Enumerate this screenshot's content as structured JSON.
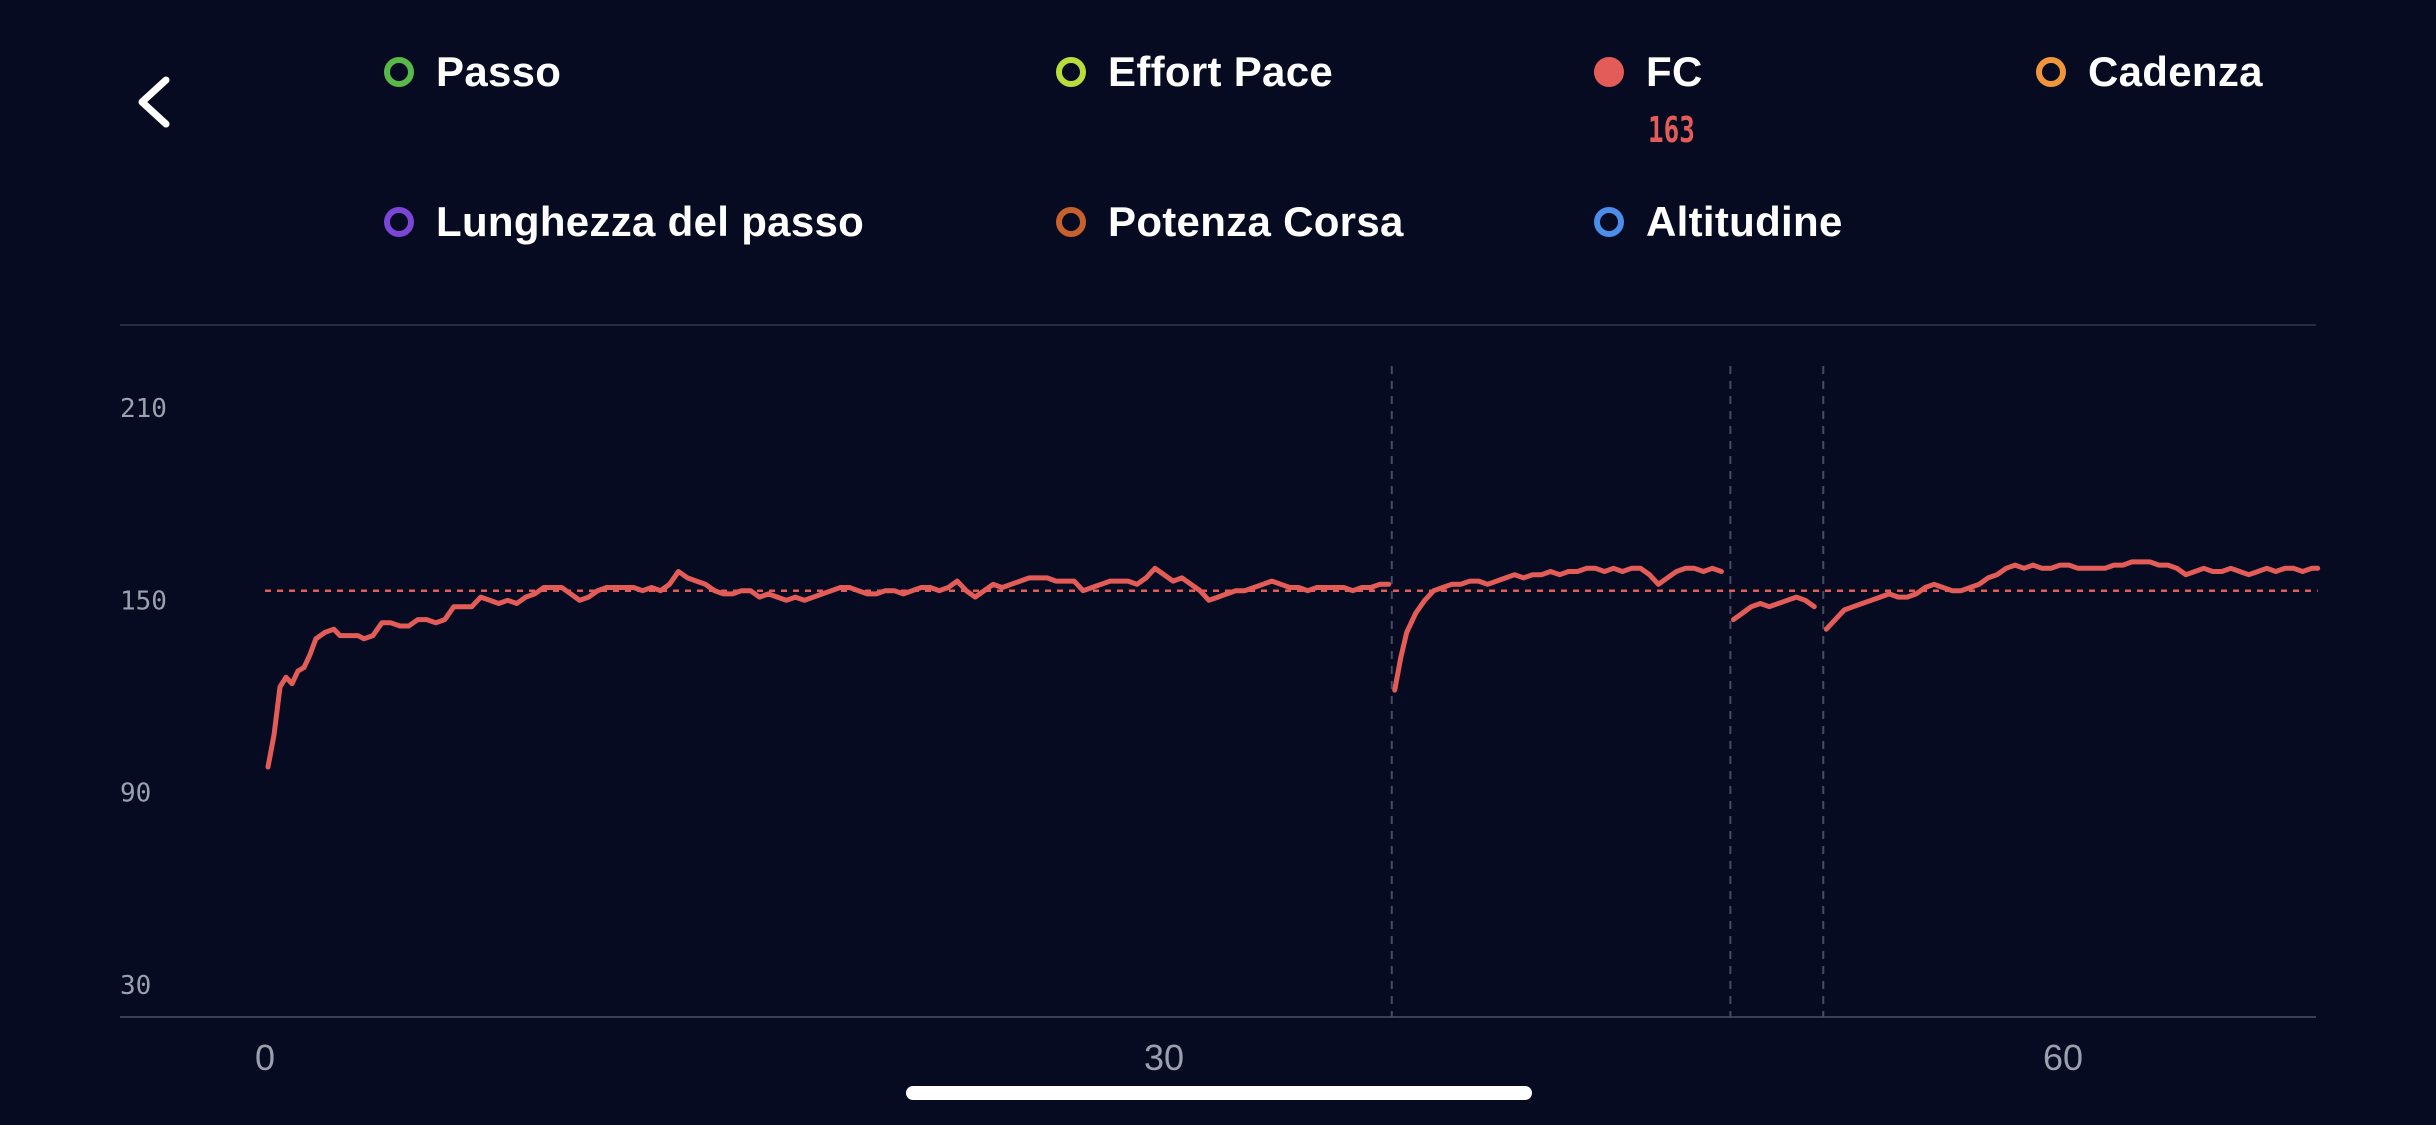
{
  "legend": {
    "items": [
      {
        "label": "Passo",
        "color": "#58b84a",
        "filled": false
      },
      {
        "label": "Effort Pace",
        "color": "#b8dc3c",
        "filled": false
      },
      {
        "label": "FC",
        "color": "#e45c57",
        "filled": true
      },
      {
        "label": "Cadenza",
        "color": "#f0953a",
        "filled": false
      },
      {
        "label": "Lunghezza del passo",
        "color": "#7b45d6",
        "filled": false
      },
      {
        "label": "Potenza Corsa",
        "color": "#c8602e",
        "filled": false
      },
      {
        "label": "Altitudine",
        "color": "#4b8de8",
        "filled": false
      }
    ],
    "fc_value": "163"
  },
  "chart_data": {
    "type": "line",
    "xlabel": "",
    "ylabel": "",
    "xlim": [
      0,
      68.5
    ],
    "ylim": [
      20,
      220
    ],
    "yticks": [
      "210",
      "150",
      "90",
      "30"
    ],
    "xticks": [
      "0",
      "30",
      "60"
    ],
    "average": 153,
    "lap_markers": [
      37.6,
      48.9,
      52.0
    ],
    "line_color": "#e45c57",
    "series": [
      {
        "segments": [
          [
            [
              0.1,
              98
            ],
            [
              0.3,
              108
            ],
            [
              0.5,
              123
            ],
            [
              0.7,
              126
            ],
            [
              0.9,
              124
            ],
            [
              1.1,
              128
            ],
            [
              1.3,
              129
            ],
            [
              1.5,
              133
            ],
            [
              1.7,
              138
            ],
            [
              2.0,
              140
            ],
            [
              2.3,
              141
            ],
            [
              2.5,
              139
            ],
            [
              2.8,
              139
            ],
            [
              3.1,
              139
            ],
            [
              3.3,
              138
            ],
            [
              3.6,
              139
            ],
            [
              3.9,
              143
            ],
            [
              4.2,
              143
            ],
            [
              4.5,
              142
            ],
            [
              4.8,
              142
            ],
            [
              5.1,
              144
            ],
            [
              5.4,
              144
            ],
            [
              5.7,
              143
            ],
            [
              6.0,
              144
            ],
            [
              6.3,
              148
            ],
            [
              6.6,
              148
            ],
            [
              6.9,
              148
            ],
            [
              7.2,
              151
            ],
            [
              7.5,
              150
            ],
            [
              7.8,
              149
            ],
            [
              8.1,
              150
            ],
            [
              8.4,
              149
            ],
            [
              8.7,
              151
            ],
            [
              9.0,
              152
            ],
            [
              9.3,
              154
            ],
            [
              9.6,
              154
            ],
            [
              9.9,
              154
            ],
            [
              10.2,
              152
            ],
            [
              10.5,
              150
            ],
            [
              10.8,
              151
            ],
            [
              11.1,
              153
            ],
            [
              11.4,
              154
            ],
            [
              11.7,
              154
            ],
            [
              12.0,
              154
            ],
            [
              12.3,
              154
            ],
            [
              12.6,
              153
            ],
            [
              12.9,
              154
            ],
            [
              13.2,
              153
            ],
            [
              13.5,
              155
            ],
            [
              13.8,
              159
            ],
            [
              14.1,
              157
            ],
            [
              14.4,
              156
            ],
            [
              14.7,
              155
            ],
            [
              15.0,
              153
            ],
            [
              15.3,
              152
            ],
            [
              15.6,
              152
            ],
            [
              15.9,
              153
            ],
            [
              16.2,
              153
            ],
            [
              16.5,
              151
            ],
            [
              16.8,
              152
            ],
            [
              17.1,
              151
            ],
            [
              17.4,
              150
            ],
            [
              17.7,
              151
            ],
            [
              18.0,
              150
            ],
            [
              18.3,
              151
            ],
            [
              18.6,
              152
            ],
            [
              18.9,
              153
            ],
            [
              19.2,
              154
            ],
            [
              19.5,
              154
            ],
            [
              19.8,
              153
            ],
            [
              20.1,
              152
            ],
            [
              20.4,
              152
            ],
            [
              20.7,
              153
            ],
            [
              21.0,
              153
            ],
            [
              21.3,
              152
            ],
            [
              21.6,
              153
            ],
            [
              21.9,
              154
            ],
            [
              22.2,
              154
            ],
            [
              22.5,
              153
            ],
            [
              22.8,
              154
            ],
            [
              23.1,
              156
            ],
            [
              23.4,
              153
            ],
            [
              23.7,
              151
            ],
            [
              24.0,
              153
            ],
            [
              24.3,
              155
            ],
            [
              24.6,
              154
            ],
            [
              24.9,
              155
            ],
            [
              25.2,
              156
            ],
            [
              25.5,
              157
            ],
            [
              25.8,
              157
            ],
            [
              26.1,
              157
            ],
            [
              26.4,
              156
            ],
            [
              26.7,
              156
            ],
            [
              27.0,
              156
            ],
            [
              27.3,
              153
            ],
            [
              27.6,
              154
            ],
            [
              27.9,
              155
            ],
            [
              28.2,
              156
            ],
            [
              28.5,
              156
            ],
            [
              28.8,
              156
            ],
            [
              29.1,
              155
            ],
            [
              29.4,
              157
            ],
            [
              29.7,
              160
            ],
            [
              30.0,
              158
            ],
            [
              30.3,
              156
            ],
            [
              30.6,
              157
            ],
            [
              30.9,
              155
            ],
            [
              31.2,
              153
            ],
            [
              31.5,
              150
            ],
            [
              31.8,
              151
            ],
            [
              32.1,
              152
            ],
            [
              32.4,
              153
            ],
            [
              32.7,
              153
            ],
            [
              33.0,
              154
            ],
            [
              33.3,
              155
            ],
            [
              33.6,
              156
            ],
            [
              33.9,
              155
            ],
            [
              34.2,
              154
            ],
            [
              34.5,
              154
            ],
            [
              34.8,
              153
            ],
            [
              35.1,
              154
            ],
            [
              35.4,
              154
            ],
            [
              35.7,
              154
            ],
            [
              36.0,
              154
            ],
            [
              36.3,
              153
            ],
            [
              36.6,
              154
            ],
            [
              36.9,
              154
            ],
            [
              37.2,
              155
            ],
            [
              37.5,
              155
            ]
          ],
          [
            [
              37.7,
              122
            ],
            [
              37.9,
              132
            ],
            [
              38.1,
              140
            ],
            [
              38.4,
              146
            ],
            [
              38.7,
              150
            ],
            [
              39.0,
              153
            ],
            [
              39.3,
              154
            ],
            [
              39.6,
              155
            ],
            [
              39.9,
              155
            ],
            [
              40.2,
              156
            ],
            [
              40.5,
              156
            ],
            [
              40.8,
              155
            ],
            [
              41.1,
              156
            ],
            [
              41.4,
              157
            ],
            [
              41.7,
              158
            ],
            [
              42.0,
              157
            ],
            [
              42.3,
              158
            ],
            [
              42.6,
              158
            ],
            [
              42.9,
              159
            ],
            [
              43.2,
              158
            ],
            [
              43.5,
              159
            ],
            [
              43.8,
              159
            ],
            [
              44.1,
              160
            ],
            [
              44.4,
              160
            ],
            [
              44.7,
              159
            ],
            [
              45.0,
              160
            ],
            [
              45.3,
              159
            ],
            [
              45.6,
              160
            ],
            [
              45.9,
              160
            ],
            [
              46.2,
              158
            ],
            [
              46.5,
              155
            ],
            [
              46.8,
              157
            ],
            [
              47.1,
              159
            ],
            [
              47.4,
              160
            ],
            [
              47.7,
              160
            ],
            [
              48.0,
              159
            ],
            [
              48.3,
              160
            ],
            [
              48.6,
              159
            ]
          ],
          [
            [
              49.0,
              144
            ],
            [
              49.3,
              146
            ],
            [
              49.6,
              148
            ],
            [
              49.9,
              149
            ],
            [
              50.2,
              148
            ],
            [
              50.5,
              149
            ],
            [
              50.8,
              150
            ],
            [
              51.1,
              151
            ],
            [
              51.4,
              150
            ],
            [
              51.7,
              148
            ]
          ],
          [
            [
              52.1,
              141
            ],
            [
              52.4,
              144
            ],
            [
              52.7,
              147
            ],
            [
              53.0,
              148
            ],
            [
              53.3,
              149
            ],
            [
              53.6,
              150
            ],
            [
              53.9,
              151
            ],
            [
              54.2,
              152
            ],
            [
              54.5,
              151
            ],
            [
              54.8,
              151
            ],
            [
              55.1,
              152
            ],
            [
              55.4,
              154
            ],
            [
              55.7,
              155
            ],
            [
              56.0,
              154
            ],
            [
              56.3,
              153
            ],
            [
              56.6,
              153
            ],
            [
              56.9,
              154
            ],
            [
              57.2,
              155
            ],
            [
              57.5,
              157
            ],
            [
              57.8,
              158
            ],
            [
              58.1,
              160
            ],
            [
              58.4,
              161
            ],
            [
              58.7,
              160
            ],
            [
              59.0,
              161
            ],
            [
              59.3,
              160
            ],
            [
              59.6,
              160
            ],
            [
              59.9,
              161
            ],
            [
              60.2,
              161
            ],
            [
              60.5,
              160
            ],
            [
              60.8,
              160
            ],
            [
              61.1,
              160
            ],
            [
              61.4,
              160
            ],
            [
              61.7,
              161
            ],
            [
              62.0,
              161
            ],
            [
              62.3,
              162
            ],
            [
              62.6,
              162
            ],
            [
              62.9,
              162
            ],
            [
              63.2,
              161
            ],
            [
              63.5,
              161
            ],
            [
              63.8,
              160
            ],
            [
              64.1,
              158
            ],
            [
              64.4,
              159
            ],
            [
              64.7,
              160
            ],
            [
              65.0,
              159
            ],
            [
              65.3,
              159
            ],
            [
              65.6,
              160
            ],
            [
              65.9,
              159
            ],
            [
              66.2,
              158
            ],
            [
              66.5,
              159
            ],
            [
              66.8,
              160
            ],
            [
              67.1,
              159
            ],
            [
              67.4,
              160
            ],
            [
              67.7,
              160
            ],
            [
              68.0,
              159
            ],
            [
              68.3,
              160
            ],
            [
              68.5,
              160
            ]
          ]
        ]
      }
    ]
  }
}
